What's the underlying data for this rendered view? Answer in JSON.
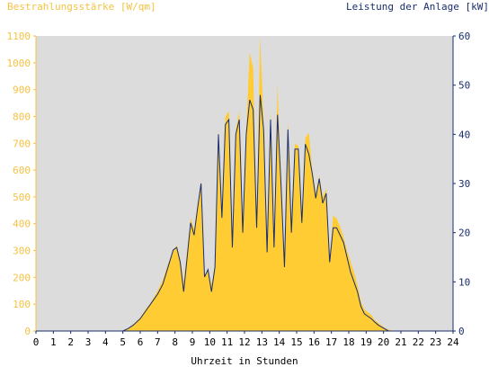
{
  "chart_data": {
    "type": "area",
    "title_left": "Bestrahlungsstärke [W/qm]",
    "title_right": "Leistung der Anlage [kW]",
    "xlabel": "Uhrzeit in Stunden",
    "xlim": [
      0,
      24
    ],
    "ylim_left": [
      0,
      1100
    ],
    "ylim_right": [
      0,
      60
    ],
    "x_ticks": [
      "0",
      "1",
      "2",
      "3",
      "4",
      "5",
      "6",
      "7",
      "8",
      "9",
      "10",
      "11",
      "12",
      "13",
      "14",
      "15",
      "16",
      "17",
      "18",
      "19",
      "20",
      "21",
      "22",
      "23",
      "24"
    ],
    "y_ticks_left": [
      "0",
      "100",
      "200",
      "300",
      "400",
      "500",
      "600",
      "700",
      "800",
      "900",
      "1000",
      "1100"
    ],
    "y_ticks_right": [
      "0",
      "10",
      "20",
      "30",
      "40",
      "50",
      "60"
    ],
    "grid": false,
    "colors": {
      "plot_bg": "#dcdcdc",
      "irradiance": "#ffcc33",
      "power": "#1a2e6e",
      "left_axis": "#f5c242",
      "right_axis": "#1a2e6e"
    },
    "series": [
      {
        "axis": "left",
        "style": "area",
        "x": [
          0,
          5.0,
          5.3,
          5.6,
          6.0,
          6.3,
          6.6,
          7.0,
          7.3,
          7.6,
          7.9,
          8.1,
          8.3,
          8.5,
          8.7,
          8.9,
          9.1,
          9.3,
          9.5,
          9.7,
          9.9,
          10.1,
          10.3,
          10.5,
          10.7,
          10.9,
          11.1,
          11.3,
          11.5,
          11.7,
          11.9,
          12.1,
          12.3,
          12.5,
          12.7,
          12.9,
          13.1,
          13.3,
          13.5,
          13.7,
          13.9,
          14.1,
          14.3,
          14.5,
          14.7,
          14.9,
          15.1,
          15.3,
          15.5,
          15.7,
          15.9,
          16.1,
          16.3,
          16.5,
          16.7,
          16.9,
          17.1,
          17.3,
          17.5,
          17.7,
          17.9,
          18.1,
          18.3,
          18.5,
          18.7,
          18.9,
          19.1,
          19.3,
          19.5,
          19.7,
          19.9,
          20.1,
          20.3,
          20.6,
          24
        ],
        "y": [
          0,
          0,
          10,
          25,
          50,
          80,
          105,
          150,
          190,
          250,
          300,
          320,
          270,
          180,
          300,
          420,
          380,
          470,
          560,
          200,
          230,
          170,
          250,
          750,
          430,
          800,
          820,
          320,
          750,
          820,
          380,
          750,
          1040,
          980,
          400,
          1100,
          780,
          300,
          820,
          320,
          920,
          550,
          250,
          780,
          380,
          700,
          690,
          420,
          720,
          740,
          600,
          510,
          580,
          500,
          530,
          260,
          430,
          420,
          390,
          350,
          300,
          260,
          220,
          170,
          110,
          80,
          70,
          60,
          40,
          30,
          20,
          10,
          5,
          0,
          0
        ]
      },
      {
        "axis": "right",
        "style": "line",
        "x": [
          0,
          5.0,
          5.3,
          5.6,
          6.0,
          6.3,
          6.6,
          7.0,
          7.3,
          7.6,
          7.9,
          8.1,
          8.3,
          8.5,
          8.7,
          8.9,
          9.1,
          9.3,
          9.5,
          9.7,
          9.9,
          10.1,
          10.3,
          10.5,
          10.7,
          10.9,
          11.1,
          11.3,
          11.5,
          11.7,
          11.9,
          12.1,
          12.3,
          12.5,
          12.7,
          12.9,
          13.1,
          13.3,
          13.5,
          13.7,
          13.9,
          14.1,
          14.3,
          14.5,
          14.7,
          14.9,
          15.1,
          15.3,
          15.5,
          15.7,
          15.9,
          16.1,
          16.3,
          16.5,
          16.7,
          16.9,
          17.1,
          17.3,
          17.5,
          17.7,
          17.9,
          18.1,
          18.3,
          18.5,
          18.7,
          18.9,
          19.1,
          19.3,
          19.5,
          19.7,
          19.9,
          20.1,
          20.3,
          20.6,
          24
        ],
        "y": [
          0,
          0,
          0.5,
          1.2,
          2.5,
          4,
          5.5,
          7.5,
          9.5,
          13,
          16.5,
          17,
          14,
          8,
          15,
          22,
          19.5,
          25,
          30,
          11,
          12.5,
          8,
          13,
          40,
          23,
          42,
          43,
          17,
          40,
          43,
          20,
          40,
          47,
          45,
          21,
          48,
          41,
          16,
          43,
          17,
          44,
          30,
          13,
          41,
          20,
          37,
          37,
          22,
          38,
          36,
          32,
          27,
          31,
          26,
          28,
          14,
          21,
          21,
          19.5,
          18,
          15,
          12,
          10,
          8,
          5,
          3.5,
          3,
          2.5,
          1.8,
          1.2,
          0.8,
          0.4,
          0,
          0,
          0
        ]
      }
    ]
  }
}
